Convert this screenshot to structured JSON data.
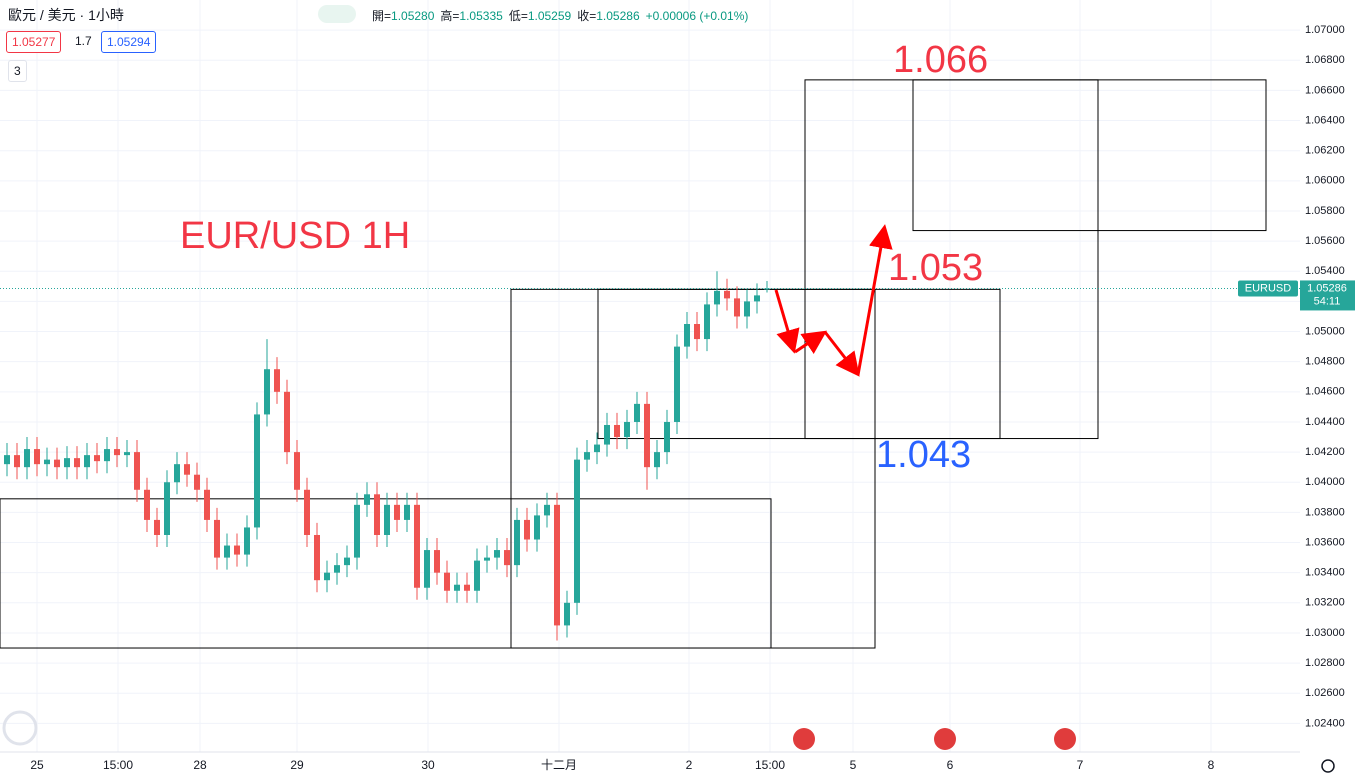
{
  "header": {
    "symbol": "歐元 / 美元 · 1小時",
    "ohlc": [
      {
        "label": "開=",
        "value": "1.05280"
      },
      {
        "label": "高=",
        "value": "1.05335"
      },
      {
        "label": "低=",
        "value": "1.05259"
      },
      {
        "label": "收=",
        "value": "1.05286"
      }
    ],
    "change": "+0.00006 (+0.01%)",
    "sell": "1.05277",
    "spread": "1.7",
    "buy": "1.05294",
    "indicators": "3"
  },
  "chart_data": {
    "type": "candlestick",
    "symbol_tag": "EURUSD",
    "last_price": 1.05286,
    "countdown": "54:11",
    "up_color": "#26a69a",
    "down_color": "#ef5350",
    "grid": true,
    "x": [
      0,
      1,
      2,
      3,
      4,
      5,
      6,
      7,
      8,
      9,
      10,
      11,
      12,
      13,
      14,
      15,
      16,
      17,
      18,
      19,
      20,
      21,
      22,
      23,
      24,
      25,
      26,
      27,
      28,
      29,
      30,
      31,
      32,
      33,
      34,
      35,
      36,
      37,
      38,
      39,
      40,
      41,
      42,
      43,
      44,
      45,
      46,
      47,
      48,
      49,
      50,
      51,
      52,
      53,
      54,
      55,
      56,
      57,
      58,
      59,
      60,
      61,
      62,
      63,
      64,
      65,
      66,
      67,
      68,
      69,
      70,
      71,
      72,
      73,
      74,
      75,
      76
    ],
    "open": [
      1.0412,
      1.0418,
      1.041,
      1.0422,
      1.0412,
      1.0415,
      1.041,
      1.0416,
      1.041,
      1.0418,
      1.0414,
      1.0422,
      1.0418,
      1.042,
      1.0395,
      1.0375,
      1.0365,
      1.04,
      1.0412,
      1.0405,
      1.0395,
      1.0375,
      1.035,
      1.0358,
      1.0352,
      1.037,
      1.0445,
      1.0475,
      1.046,
      1.042,
      1.0395,
      1.0365,
      1.0335,
      1.034,
      1.0345,
      1.035,
      1.0385,
      1.0392,
      1.0365,
      1.0385,
      1.0375,
      1.0385,
      1.033,
      1.0355,
      1.034,
      1.0328,
      1.0332,
      1.0328,
      1.0348,
      1.035,
      1.0355,
      1.0345,
      1.0375,
      1.0362,
      1.0378,
      1.0385,
      1.0305,
      1.032,
      1.0415,
      1.042,
      1.0425,
      1.0438,
      1.043,
      1.044,
      1.0452,
      1.041,
      1.042,
      1.044,
      1.049,
      1.0505,
      1.0495,
      1.0518,
      1.0527,
      1.0522,
      1.051,
      1.052,
      1.0528
    ],
    "high": [
      1.0426,
      1.0426,
      1.043,
      1.043,
      1.0423,
      1.0423,
      1.0424,
      1.0424,
      1.0426,
      1.0426,
      1.043,
      1.043,
      1.0428,
      1.0428,
      1.0403,
      1.0383,
      1.0408,
      1.042,
      1.042,
      1.0413,
      1.0403,
      1.0383,
      1.0366,
      1.0366,
      1.0378,
      1.0453,
      1.0495,
      1.0483,
      1.0468,
      1.0428,
      1.0403,
      1.0373,
      1.0348,
      1.0353,
      1.0358,
      1.0393,
      1.04,
      1.04,
      1.0393,
      1.0393,
      1.0393,
      1.0393,
      1.0363,
      1.0363,
      1.0348,
      1.034,
      1.034,
      1.0356,
      1.0358,
      1.0363,
      1.0363,
      1.0383,
      1.0383,
      1.0386,
      1.0393,
      1.0393,
      1.0328,
      1.0423,
      1.0428,
      1.0433,
      1.0446,
      1.0446,
      1.0448,
      1.046,
      1.046,
      1.0428,
      1.0448,
      1.0498,
      1.0513,
      1.0513,
      1.0526,
      1.054,
      1.0535,
      1.053,
      1.0528,
      1.0532,
      1.05335
    ],
    "low": [
      1.0404,
      1.0402,
      1.0402,
      1.0404,
      1.0404,
      1.0402,
      1.0402,
      1.0402,
      1.0402,
      1.0406,
      1.0406,
      1.041,
      1.041,
      1.0387,
      1.0367,
      1.0357,
      1.0357,
      1.0392,
      1.0397,
      1.0387,
      1.0367,
      1.0342,
      1.0342,
      1.0344,
      1.0344,
      1.0362,
      1.0437,
      1.0452,
      1.0412,
      1.0387,
      1.0357,
      1.0327,
      1.0327,
      1.0332,
      1.0337,
      1.0342,
      1.0377,
      1.0357,
      1.0357,
      1.0367,
      1.0367,
      1.0322,
      1.0322,
      1.0332,
      1.032,
      1.032,
      1.032,
      1.032,
      1.034,
      1.0342,
      1.0337,
      1.0337,
      1.0354,
      1.0354,
      1.037,
      1.0295,
      1.0297,
      1.0312,
      1.0407,
      1.0412,
      1.0417,
      1.0422,
      1.0422,
      1.0432,
      1.0395,
      1.0402,
      1.0412,
      1.0432,
      1.0482,
      1.0487,
      1.0487,
      1.051,
      1.0514,
      1.0502,
      1.0502,
      1.0512,
      1.05259
    ],
    "close": [
      1.0418,
      1.041,
      1.0422,
      1.0412,
      1.0415,
      1.041,
      1.0416,
      1.041,
      1.0418,
      1.0414,
      1.0422,
      1.0418,
      1.042,
      1.0395,
      1.0375,
      1.0365,
      1.04,
      1.0412,
      1.0405,
      1.0395,
      1.0375,
      1.035,
      1.0358,
      1.0352,
      1.037,
      1.0445,
      1.0475,
      1.046,
      1.042,
      1.0395,
      1.0365,
      1.0335,
      1.034,
      1.0345,
      1.035,
      1.0385,
      1.0392,
      1.0365,
      1.0385,
      1.0375,
      1.0385,
      1.033,
      1.0355,
      1.034,
      1.0328,
      1.0332,
      1.0328,
      1.0348,
      1.035,
      1.0355,
      1.0345,
      1.0375,
      1.0362,
      1.0378,
      1.0385,
      1.0305,
      1.032,
      1.0415,
      1.042,
      1.0425,
      1.0438,
      1.043,
      1.044,
      1.0452,
      1.041,
      1.042,
      1.044,
      1.049,
      1.0505,
      1.0495,
      1.0518,
      1.0527,
      1.0522,
      1.051,
      1.052,
      1.0524,
      1.05286
    ],
    "xlim": [
      -0.7,
      129.3
    ],
    "xticks": [
      {
        "value": 3,
        "label": "25"
      },
      {
        "value": 11.1,
        "label": "15:00"
      },
      {
        "value": 19.3,
        "label": "28"
      },
      {
        "value": 29,
        "label": "29"
      },
      {
        "value": 42.1,
        "label": "30"
      },
      {
        "value": 55.2,
        "label": "十二月"
      },
      {
        "value": 68.2,
        "label": "2"
      },
      {
        "value": 76.3,
        "label": "15:00"
      },
      {
        "value": 84.6,
        "label": "5"
      },
      {
        "value": 94.3,
        "label": "6"
      },
      {
        "value": 107.3,
        "label": "7"
      },
      {
        "value": 120.4,
        "label": "8"
      }
    ],
    "ylim": [
      1.0221,
      1.072
    ],
    "yticks": [
      {
        "value": 1.024,
        "label": "1.02400"
      },
      {
        "value": 1.026,
        "label": "1.02600"
      },
      {
        "value": 1.028,
        "label": "1.02800"
      },
      {
        "value": 1.03,
        "label": "1.03000"
      },
      {
        "value": 1.032,
        "label": "1.03200"
      },
      {
        "value": 1.034,
        "label": "1.03400"
      },
      {
        "value": 1.036,
        "label": "1.03600"
      },
      {
        "value": 1.038,
        "label": "1.03800"
      },
      {
        "value": 1.04,
        "label": "1.04000"
      },
      {
        "value": 1.042,
        "label": "1.04200"
      },
      {
        "value": 1.044,
        "label": "1.04400"
      },
      {
        "value": 1.046,
        "label": "1.04600"
      },
      {
        "value": 1.048,
        "label": "1.04800"
      },
      {
        "value": 1.05,
        "label": "1.05000"
      },
      {
        "value": 1.052,
        "label": "1.05200"
      },
      {
        "value": 1.054,
        "label": "1.05400"
      },
      {
        "value": 1.056,
        "label": "1.05600"
      },
      {
        "value": 1.058,
        "label": "1.05800"
      },
      {
        "value": 1.06,
        "label": "1.06000"
      },
      {
        "value": 1.062,
        "label": "1.06200"
      },
      {
        "value": 1.064,
        "label": "1.06400"
      },
      {
        "value": 1.066,
        "label": "1.06600"
      },
      {
        "value": 1.068,
        "label": "1.06800"
      },
      {
        "value": 1.07,
        "label": "1.07000"
      }
    ],
    "rectangles": [
      {
        "x": [
          -0.7,
          76.4
        ],
        "y": [
          1.029,
          1.0389
        ]
      },
      {
        "x": [
          50.4,
          86.8
        ],
        "y": [
          1.029,
          1.0528
        ]
      },
      {
        "x": [
          59.1,
          99.3
        ],
        "y": [
          1.0429,
          1.0528
        ]
      },
      {
        "x": [
          79.8,
          109.1
        ],
        "y": [
          1.0429,
          1.0667
        ]
      },
      {
        "x": [
          90.6,
          125.9
        ],
        "y": [
          1.0567,
          1.0667
        ]
      }
    ],
    "annotations": [
      {
        "text": "EUR/USD 1H",
        "color": "#f23645"
      },
      {
        "text": "1.066",
        "color": "#f23645"
      },
      {
        "text": "1.053",
        "color": "#f23645"
      },
      {
        "text": "1.043",
        "color": "#2962ff"
      }
    ]
  }
}
